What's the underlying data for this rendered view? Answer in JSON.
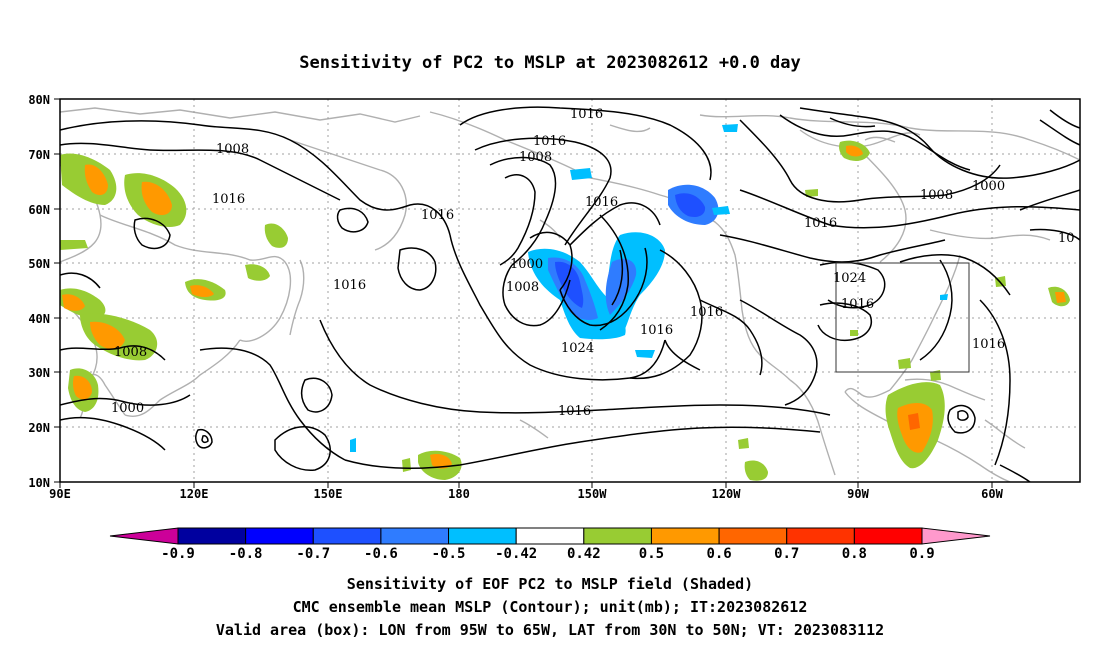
{
  "title": "Sensitivity of PC2 to MSLP at 2023082612 +0.0 day",
  "map": {
    "lon_labels": [
      "90E",
      "120E",
      "150E",
      "180",
      "150W",
      "120W",
      "90W",
      "60W"
    ],
    "lat_labels": [
      "80N",
      "70N",
      "60N",
      "50N",
      "40N",
      "30N",
      "20N",
      "10N"
    ],
    "valid_box": {
      "lon_from": "95W",
      "lon_to": "65W",
      "lat_from": "30N",
      "lat_to": "50N"
    },
    "contour_labels": [
      "1016",
      "1016",
      "1008",
      "1008",
      "1016",
      "1016",
      "1016",
      "1000",
      "1008",
      "1024",
      "1016",
      "1016",
      "1016",
      "1008",
      "1000",
      "1016",
      "1016",
      "1008",
      "1000",
      "1024",
      "1016",
      "1016",
      "10"
    ]
  },
  "colorbar": {
    "labels": [
      "-0.9",
      "-0.8",
      "-0.7",
      "-0.6",
      "-0.5",
      "-0.42",
      "0.42",
      "0.5",
      "0.6",
      "0.7",
      "0.8",
      "0.9"
    ],
    "colors": [
      "#00009f",
      "#0000ff",
      "#1e50ff",
      "#2f7cff",
      "#00bfff",
      "#ffffff",
      "#98cc33",
      "#ff9900",
      "#ff6600",
      "#ff3300",
      "#ff0000"
    ],
    "low_end_color": "#cc0099",
    "high_end_color": "#ff99cc"
  },
  "captions": {
    "line1": "Sensitivity of EOF PC2 to MSLP field (Shaded)",
    "line2": "CMC ensemble mean MSLP (Contour); unit(mb); IT:2023082612",
    "line3": "Valid area (box): LON from 95W to 65W, LAT from 30N to 50N; VT: 2023083112"
  }
}
